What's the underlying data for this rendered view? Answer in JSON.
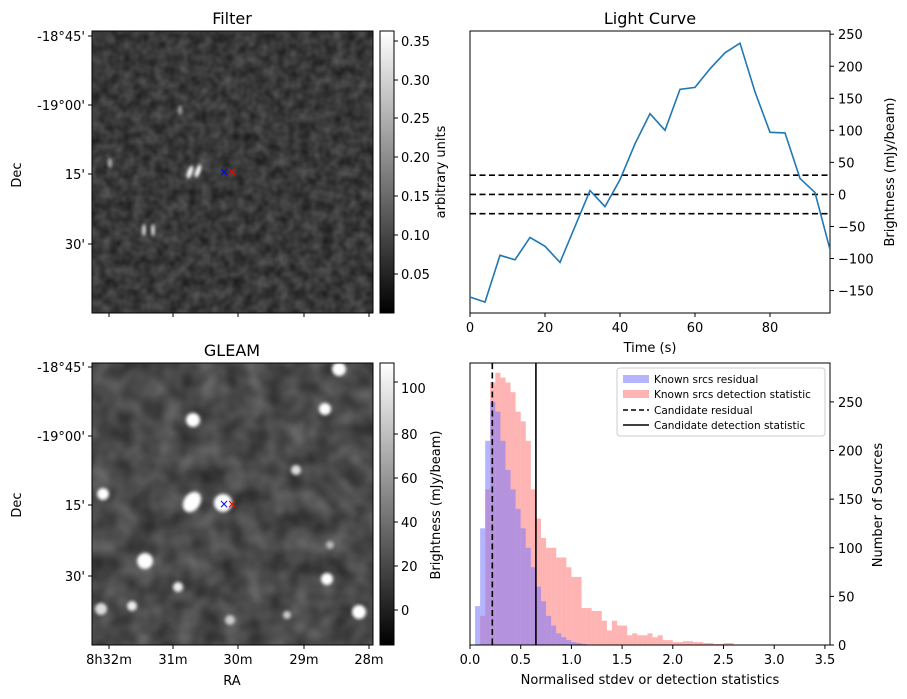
{
  "chart_data": [
    {
      "type": "heatmap",
      "title": "Filter",
      "xlabel": "",
      "ylabel": "Dec",
      "y_ticks": [
        "-18°45'",
        "-19°00'",
        "15'",
        "30'"
      ],
      "colorbar": {
        "label": "arbitrary units",
        "ticks": [
          "0.35",
          "0.30",
          "0.25",
          "0.20",
          "0.15",
          "0.10",
          "0.05"
        ],
        "range": [
          0.005,
          0.36
        ],
        "colormap": "grayscale"
      },
      "markers": [
        {
          "symbol": "×",
          "color": "#0000ff"
        },
        {
          "symbol": "×",
          "color": "#ff0000"
        }
      ]
    },
    {
      "type": "line",
      "title": "Light Curve",
      "xlabel": "Time (s)",
      "ylabel": "Brightness (mJy/beam)",
      "xlim": [
        0,
        96
      ],
      "ylim": [
        -185,
        255
      ],
      "x_ticks": [
        "0",
        "20",
        "40",
        "60",
        "80"
      ],
      "y_ticks": [
        "250",
        "200",
        "150",
        "100",
        "50",
        "0",
        "−50",
        "−100",
        "−150"
      ],
      "line_color": "#1f77b4",
      "series": [
        {
          "x": [
            0,
            4,
            8,
            12,
            16,
            20,
            24,
            28,
            32,
            36,
            40,
            44,
            48,
            52,
            56,
            60,
            64,
            68,
            72,
            76,
            80,
            84,
            88,
            92,
            96
          ],
          "values": [
            -160,
            -168,
            -95,
            -102,
            -67,
            -81,
            -106,
            -50,
            6,
            -19,
            23,
            79,
            126,
            100,
            164,
            167,
            196,
            221,
            236,
            160,
            97,
            96,
            25,
            3,
            -86
          ]
        }
      ],
      "hlines": [
        {
          "y": 30,
          "style": "dashed",
          "color": "#000000"
        },
        {
          "y": 0,
          "style": "dashed",
          "color": "#000000"
        },
        {
          "y": -30,
          "style": "dashed",
          "color": "#000000"
        }
      ]
    },
    {
      "type": "heatmap",
      "title": "GLEAM",
      "xlabel": "RA",
      "ylabel": "Dec",
      "x_ticks": [
        "8h32m",
        "31m",
        "30m",
        "29m",
        "28m"
      ],
      "y_ticks": [
        "-18°45'",
        "-19°00'",
        "15'",
        "30'"
      ],
      "colorbar": {
        "label": "Brightness (mJy/beam)",
        "ticks": [
          "100",
          "80",
          "60",
          "40",
          "20",
          "0"
        ],
        "range": [
          -14,
          110
        ],
        "colormap": "grayscale"
      },
      "markers": [
        {
          "symbol": "×",
          "color": "#0000ff"
        },
        {
          "symbol": "×",
          "color": "#ff0000"
        }
      ]
    },
    {
      "type": "bar",
      "title": "",
      "xlabel": "Normalised stdev or detection statistics",
      "ylabel": "Number of Sources",
      "xlim": [
        0,
        3.55
      ],
      "ylim": [
        0,
        290
      ],
      "x_ticks": [
        "0.0",
        "0.5",
        "1.0",
        "1.5",
        "2.0",
        "2.5",
        "3.0",
        "3.5"
      ],
      "y_ticks": [
        "250",
        "200",
        "150",
        "100",
        "50",
        "0"
      ],
      "bin_width": 0.05,
      "series": [
        {
          "name": "Known srcs residual",
          "color": "#7777ff",
          "bin_start": 0.05,
          "values": [
            40,
            120,
            210,
            250,
            240,
            210,
            180,
            160,
            140,
            120,
            100,
            80,
            60,
            45,
            30,
            20,
            12,
            8,
            5,
            3,
            2,
            1
          ]
        },
        {
          "name": "Known srcs detection statistic",
          "color": "#ff7777",
          "bin_start": 0.1,
          "values": [
            30,
            160,
            270,
            280,
            275,
            270,
            260,
            240,
            230,
            210,
            160,
            130,
            110,
            100,
            100,
            90,
            90,
            80,
            70,
            70,
            38,
            38,
            35,
            35,
            25,
            15,
            25,
            20,
            20,
            10,
            12,
            10,
            10,
            12,
            8,
            10,
            5,
            5,
            3,
            3,
            4,
            4,
            3,
            3,
            2,
            2,
            1,
            1,
            2,
            2
          ]
        }
      ],
      "vlines": [
        {
          "name": "Candidate residual",
          "x": 0.22,
          "style": "dashed",
          "color": "#000000"
        },
        {
          "name": "Candidate detection statistic",
          "x": 0.65,
          "style": "solid",
          "color": "#000000"
        }
      ],
      "legend_placement": "top-right"
    }
  ]
}
